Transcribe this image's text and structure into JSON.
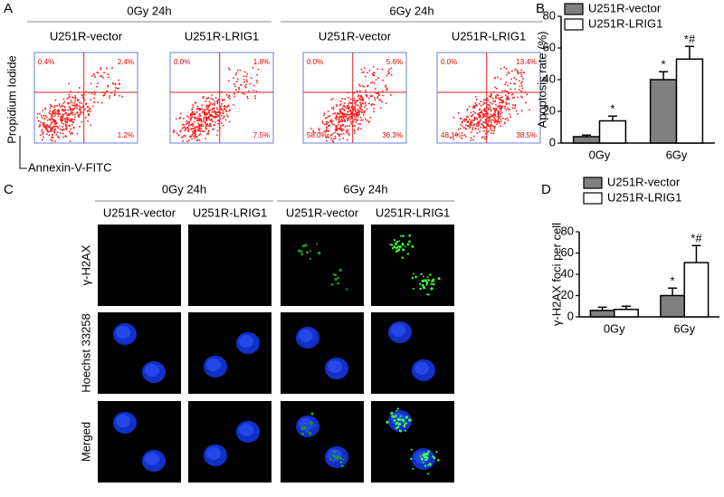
{
  "panel_labels": [
    "A",
    "B",
    "C",
    "D"
  ],
  "flow": {
    "groups": [
      "0Gy  24h",
      "6Gy  24h"
    ],
    "columns": [
      "U251R-vector",
      "U251R-LRIG1",
      "U251R-vector",
      "U251R-LRIG1"
    ],
    "y_label": "Propidium Iodide",
    "x_label": "Annexin-V-FITC",
    "plots": [
      {
        "upper_left": "0.4%",
        "upper_right": "2.4%",
        "lower_right": "1.2%"
      },
      {
        "upper_left": "0.0%",
        "upper_right": "1.8%",
        "lower_right": "7.5%"
      },
      {
        "upper_left": "0.0%",
        "upper_right": "5.6%",
        "lower_left": "58.0%",
        "lower_right": "36.3%"
      },
      {
        "upper_left": "0.0%",
        "upper_right": "13.4%",
        "lower_left": "48.1%",
        "lower_right": "38.5%"
      }
    ]
  },
  "images": {
    "groups": [
      "0Gy 24h",
      "6Gy 24h"
    ],
    "columns": [
      "U251R-vector",
      "U251R-LRIG1",
      "U251R-vector",
      "U251R-LRIG1"
    ],
    "rows": [
      "γ-H2AX",
      "Hoechst 33258",
      "Merged"
    ]
  },
  "chart_data": [
    {
      "type": "bar",
      "ylabel": "Apoptosis rate (%)",
      "categories": [
        "0Gy",
        "6Gy"
      ],
      "series": [
        {
          "name": "U251R-vector",
          "color": "#808080",
          "values": [
            4,
            40
          ],
          "errors": [
            1,
            5
          ],
          "annotations": [
            null,
            "*"
          ]
        },
        {
          "name": "U251R-LRIG1",
          "color": "#ffffff",
          "values": [
            14,
            53
          ],
          "errors": [
            3,
            8
          ],
          "annotations": [
            "*",
            "*#"
          ]
        }
      ],
      "ylim": [
        0,
        80
      ],
      "yticks": [
        0,
        20,
        40,
        60,
        80
      ]
    },
    {
      "type": "bar",
      "ylabel": "γ-H2AX foci per cell",
      "categories": [
        "0Gy",
        "6Gy"
      ],
      "series": [
        {
          "name": "U251R-vector",
          "color": "#808080",
          "values": [
            6,
            20
          ],
          "errors": [
            3,
            7
          ],
          "annotations": [
            null,
            "*"
          ]
        },
        {
          "name": "U251R-LRIG1",
          "color": "#ffffff",
          "values": [
            7,
            51
          ],
          "errors": [
            3,
            16
          ],
          "annotations": [
            null,
            "*#"
          ]
        }
      ],
      "ylim": [
        0,
        80
      ],
      "yticks": [
        0,
        20,
        40,
        60,
        80
      ]
    }
  ]
}
